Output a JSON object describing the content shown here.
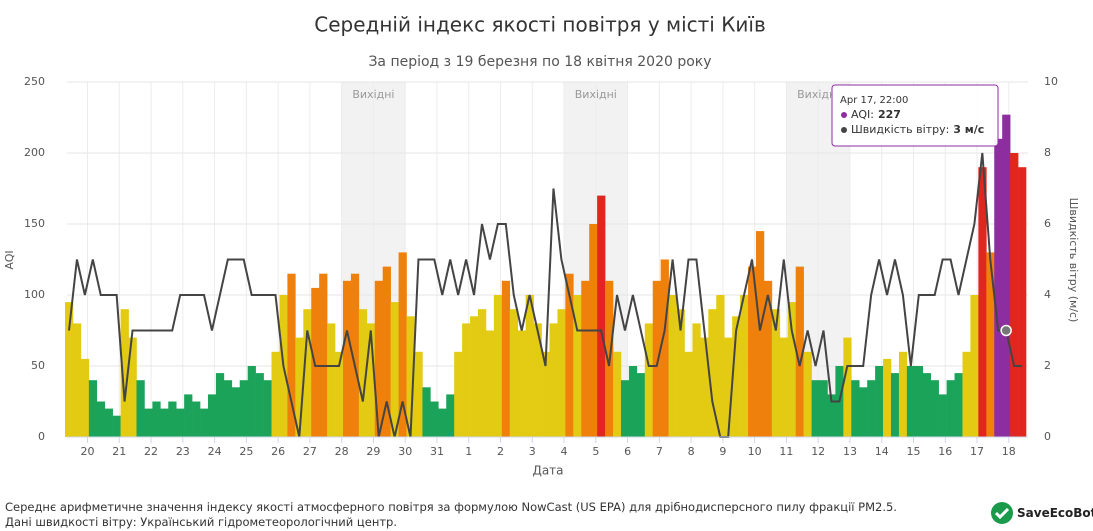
{
  "chart_data": {
    "type": "bar",
    "title": "Середній індекс якості повітря у місті Київ",
    "subtitle": "За період з 19 березня по 18 квітня 2020 року",
    "x_label": "Дата",
    "y_label": "AQI",
    "y2_label": "Швидкість вітру (м/с)",
    "grid": true,
    "x": [
      "2020-03-19T10:00",
      "2020-03-19T16:00",
      "2020-03-19T22:00",
      "2020-03-20T04:00",
      "2020-03-20T10:00",
      "2020-03-20T16:00",
      "2020-03-20T22:00",
      "2020-03-21T04:00",
      "2020-03-21T10:00",
      "2020-03-21T16:00",
      "2020-03-21T22:00",
      "2020-03-22T04:00",
      "2020-03-22T10:00",
      "2020-03-22T16:00",
      "2020-03-22T22:00",
      "2020-03-23T04:00",
      "2020-03-23T10:00",
      "2020-03-23T16:00",
      "2020-03-23T22:00",
      "2020-03-24T04:00",
      "2020-03-24T10:00",
      "2020-03-24T16:00",
      "2020-03-24T22:00",
      "2020-03-25T04:00",
      "2020-03-25T10:00",
      "2020-03-25T16:00",
      "2020-03-25T22:00",
      "2020-03-26T04:00",
      "2020-03-26T10:00",
      "2020-03-26T16:00",
      "2020-03-26T22:00",
      "2020-03-27T04:00",
      "2020-03-27T10:00",
      "2020-03-27T16:00",
      "2020-03-27T22:00",
      "2020-03-28T04:00",
      "2020-03-28T10:00",
      "2020-03-28T16:00",
      "2020-03-28T22:00",
      "2020-03-29T04:00",
      "2020-03-29T10:00",
      "2020-03-29T16:00",
      "2020-03-29T22:00",
      "2020-03-30T04:00",
      "2020-03-30T10:00",
      "2020-03-30T16:00",
      "2020-03-30T22:00",
      "2020-03-31T04:00",
      "2020-03-31T10:00",
      "2020-03-31T16:00",
      "2020-03-31T22:00",
      "2020-04-01T04:00",
      "2020-04-01T10:00",
      "2020-04-01T16:00",
      "2020-04-01T22:00",
      "2020-04-02T04:00",
      "2020-04-02T10:00",
      "2020-04-02T16:00",
      "2020-04-02T22:00",
      "2020-04-03T04:00",
      "2020-04-03T10:00",
      "2020-04-03T16:00",
      "2020-04-03T22:00",
      "2020-04-04T04:00",
      "2020-04-04T10:00",
      "2020-04-04T16:00",
      "2020-04-04T22:00",
      "2020-04-05T04:00",
      "2020-04-05T10:00",
      "2020-04-05T16:00",
      "2020-04-05T22:00",
      "2020-04-06T04:00",
      "2020-04-06T10:00",
      "2020-04-06T16:00",
      "2020-04-06T22:00",
      "2020-04-07T04:00",
      "2020-04-07T10:00",
      "2020-04-07T16:00",
      "2020-04-07T22:00",
      "2020-04-08T04:00",
      "2020-04-08T10:00",
      "2020-04-08T16:00",
      "2020-04-08T22:00",
      "2020-04-09T04:00",
      "2020-04-09T10:00",
      "2020-04-09T16:00",
      "2020-04-09T22:00",
      "2020-04-10T04:00",
      "2020-04-10T10:00",
      "2020-04-10T16:00",
      "2020-04-10T22:00",
      "2020-04-11T04:00",
      "2020-04-11T10:00",
      "2020-04-11T16:00",
      "2020-04-11T22:00",
      "2020-04-12T04:00",
      "2020-04-12T10:00",
      "2020-04-12T16:00",
      "2020-04-12T22:00",
      "2020-04-13T04:00",
      "2020-04-13T10:00",
      "2020-04-13T16:00",
      "2020-04-13T22:00",
      "2020-04-14T04:00",
      "2020-04-14T10:00",
      "2020-04-14T16:00",
      "2020-04-14T22:00",
      "2020-04-15T04:00",
      "2020-04-15T10:00",
      "2020-04-15T16:00",
      "2020-04-15T22:00",
      "2020-04-16T04:00",
      "2020-04-16T10:00",
      "2020-04-16T16:00",
      "2020-04-16T22:00",
      "2020-04-17T04:00",
      "2020-04-17T10:00",
      "2020-04-17T16:00",
      "2020-04-17T22:00",
      "2020-04-18T04:00",
      "2020-04-18T10:00"
    ],
    "series": [
      {
        "type": "bar",
        "values": [
          95,
          80,
          55,
          40,
          25,
          20,
          15,
          90,
          70,
          40,
          20,
          25,
          20,
          25,
          20,
          30,
          25,
          20,
          30,
          45,
          40,
          35,
          40,
          50,
          45,
          40,
          60,
          100,
          115,
          70,
          90,
          105,
          115,
          80,
          60,
          110,
          115,
          90,
          80,
          110,
          120,
          95,
          130,
          85,
          60,
          35,
          25,
          20,
          30,
          60,
          80,
          85,
          90,
          75,
          100,
          110,
          90,
          75,
          100,
          80,
          60,
          80,
          90,
          115,
          100,
          110,
          150,
          170,
          110,
          60,
          40,
          50,
          45,
          80,
          110,
          125,
          100,
          90,
          60,
          80,
          70,
          90,
          100,
          70,
          85,
          100,
          120,
          145,
          110,
          90,
          70,
          95,
          120,
          60,
          40,
          40,
          30,
          50,
          70,
          40,
          35,
          40,
          50,
          55,
          45,
          60,
          50,
          50,
          45,
          40,
          30,
          40,
          45,
          60,
          100,
          190,
          130,
          210,
          227,
          200,
          190
        ]
      },
      {
        "type": "line",
        "axis": "y2",
        "color": "#444444",
        "values": [
          3,
          5,
          4,
          5,
          4,
          4,
          4,
          1,
          3,
          3,
          3,
          3,
          3,
          3,
          4,
          4,
          4,
          4,
          3,
          4,
          5,
          5,
          5,
          4,
          4,
          4,
          4,
          2,
          1,
          0,
          3,
          2,
          2,
          2,
          2,
          3,
          2,
          1,
          3,
          0,
          1,
          0,
          1,
          0,
          5,
          5,
          5,
          4,
          5,
          4,
          5,
          4,
          6,
          5,
          6,
          6,
          4,
          3,
          4,
          3,
          2,
          7,
          5,
          4,
          3,
          3,
          3,
          3,
          2,
          4,
          3,
          4,
          3,
          2,
          2,
          3,
          5,
          3,
          5,
          5,
          3,
          1,
          0,
          0,
          3,
          4,
          5,
          3,
          4,
          3,
          5,
          3,
          2,
          3,
          2,
          3,
          1,
          1,
          2,
          2,
          2,
          4,
          5,
          4,
          5,
          4,
          2,
          4,
          4,
          4,
          5,
          5,
          4,
          5,
          6,
          8,
          5,
          3,
          3,
          2,
          2
        ]
      }
    ],
    "color_levels": [
      {
        "max": 50,
        "color": "#1ca35a"
      },
      {
        "max": 100,
        "color": "#e3cb14"
      },
      {
        "max": 150,
        "color": "#f0800c"
      },
      {
        "max": 200,
        "color": "#e0261e"
      },
      {
        "max": 300,
        "color": "#8c2da0"
      }
    ],
    "xlim": [
      "2020-03-19T08:30",
      "2020-04-18T14:30"
    ],
    "xticks": [
      {
        "value": "2020-03-20T00:00",
        "label": "20"
      },
      {
        "value": "2020-03-21T00:00",
        "label": "21"
      },
      {
        "value": "2020-03-22T00:00",
        "label": "22"
      },
      {
        "value": "2020-03-23T00:00",
        "label": "23"
      },
      {
        "value": "2020-03-24T00:00",
        "label": "24"
      },
      {
        "value": "2020-03-25T00:00",
        "label": "25"
      },
      {
        "value": "2020-03-26T00:00",
        "label": "26"
      },
      {
        "value": "2020-03-27T00:00",
        "label": "27"
      },
      {
        "value": "2020-03-28T00:00",
        "label": "28"
      },
      {
        "value": "2020-03-29T00:00",
        "label": "29"
      },
      {
        "value": "2020-03-30T00:00",
        "label": "30"
      },
      {
        "value": "2020-03-31T00:00",
        "label": "31"
      },
      {
        "value": "2020-04-01T00:00",
        "label": "1"
      },
      {
        "value": "2020-04-02T00:00",
        "label": "2"
      },
      {
        "value": "2020-04-03T00:00",
        "label": "3"
      },
      {
        "value": "2020-04-04T00:00",
        "label": "4"
      },
      {
        "value": "2020-04-05T00:00",
        "label": "5"
      },
      {
        "value": "2020-04-06T00:00",
        "label": "6"
      },
      {
        "value": "2020-04-07T00:00",
        "label": "7"
      },
      {
        "value": "2020-04-08T00:00",
        "label": "8"
      },
      {
        "value": "2020-04-09T00:00",
        "label": "9"
      },
      {
        "value": "2020-04-10T00:00",
        "label": "10"
      },
      {
        "value": "2020-04-11T00:00",
        "label": "11"
      },
      {
        "value": "2020-04-12T00:00",
        "label": "12"
      },
      {
        "value": "2020-04-13T00:00",
        "label": "13"
      },
      {
        "value": "2020-04-14T00:00",
        "label": "14"
      },
      {
        "value": "2020-04-15T00:00",
        "label": "15"
      },
      {
        "value": "2020-04-16T00:00",
        "label": "16"
      },
      {
        "value": "2020-04-17T00:00",
        "label": "17"
      },
      {
        "value": "2020-04-18T00:00",
        "label": "18"
      }
    ],
    "ylim": [
      0,
      250
    ],
    "yticks": [
      0,
      50,
      100,
      150,
      200,
      250
    ],
    "y2lim": [
      0,
      10
    ],
    "y2ticks": [
      0,
      2,
      4,
      6,
      8,
      10
    ],
    "plot_bands": [
      {
        "from": "2020-03-28T00:00",
        "to": "2020-03-30T00:00",
        "label": "Вихідні"
      },
      {
        "from": "2020-04-04T00:00",
        "to": "2020-04-06T00:00",
        "label": "Вихідні"
      },
      {
        "from": "2020-04-11T00:00",
        "to": "2020-04-13T00:00",
        "label": "Вихідні"
      }
    ],
    "tooltip": {
      "title": "Apr 17, 22:00",
      "rows": [
        {
          "label": "AQI:",
          "value": "227"
        },
        {
          "label": "Швидкість вітру:",
          "value": "3 м/с"
        }
      ]
    }
  },
  "footer": [
    "Середнє арифметичне значення індексу якості атмосферного повітря за формулою NowCast (US EPA) для дрібнодисперсного пилу фракції PM2.5.",
    "Дані швидкості вітру: Український гідрометеорологічний центр."
  ],
  "logo": "SaveEcoBot"
}
